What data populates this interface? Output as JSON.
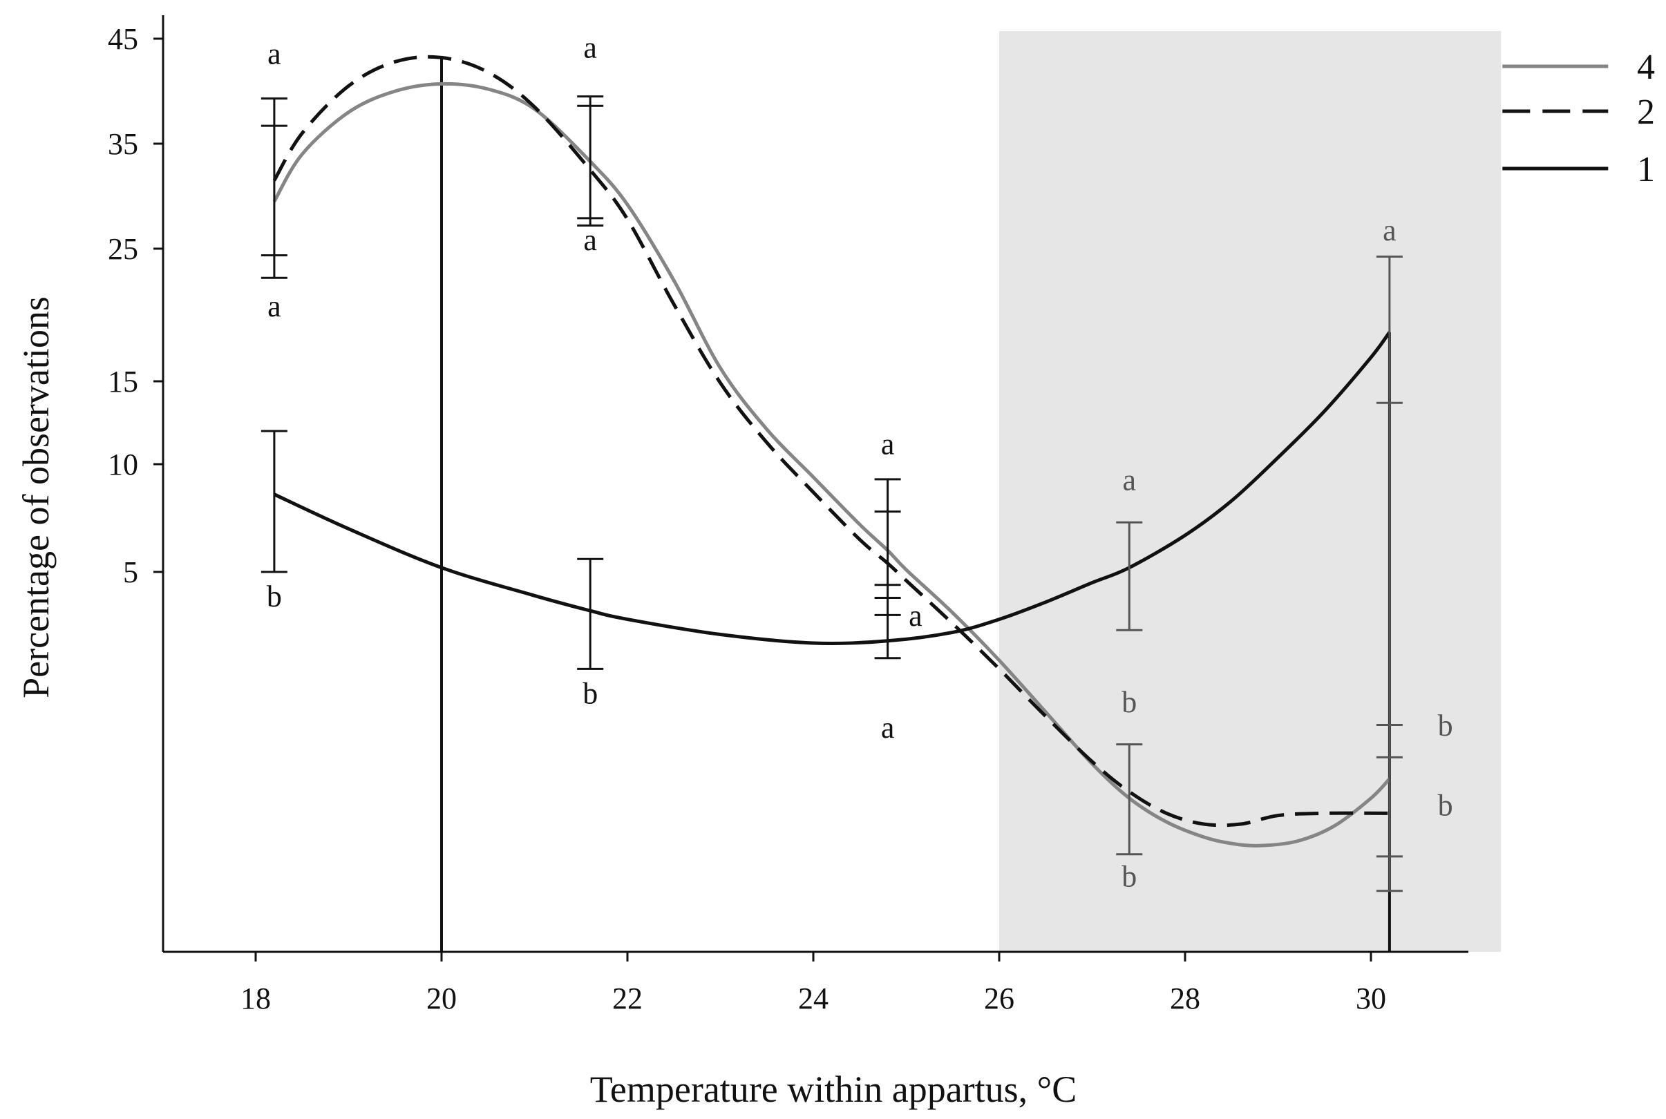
{
  "chart_data": {
    "type": "line",
    "title": "",
    "xlabel": "Temperature within appartus, °C",
    "ylabel": "Percentage of observations",
    "xlim": [
      17,
      31.4
    ],
    "x_ticks": [
      18,
      20,
      22,
      24,
      26,
      28,
      30
    ],
    "x_tick_labels": [
      "18",
      "20",
      "22",
      "24",
      "26",
      "28",
      "30"
    ],
    "y_ticks": [
      5,
      10,
      15,
      25,
      35,
      45
    ],
    "y_tick_labels": [
      "5",
      "10",
      "15",
      "25",
      "35",
      "45"
    ],
    "grid": false,
    "shaded_region": {
      "x_start": 26,
      "x_end": 31.4
    },
    "legend": {
      "placement": "top-right",
      "entries": [
        {
          "label": "4",
          "series": "4",
          "style": "solid",
          "color": "#858585"
        },
        {
          "label": "2",
          "series": "2",
          "style": "dashed",
          "color": "#111111"
        },
        {
          "label": "1",
          "series": "1",
          "style": "solid",
          "color": "#111111"
        }
      ]
    },
    "series": [
      {
        "name": "4",
        "style": "solid",
        "color": "#858585",
        "points": [
          {
            "x": 18.2,
            "y": 29.5
          },
          {
            "x": 18.5,
            "y": 34
          },
          {
            "x": 19,
            "y": 38
          },
          {
            "x": 19.5,
            "y": 40
          },
          {
            "x": 20,
            "y": 40.7
          },
          {
            "x": 20.5,
            "y": 40.2
          },
          {
            "x": 21,
            "y": 38.3
          },
          {
            "x": 21.6,
            "y": 33.3
          },
          {
            "x": 22,
            "y": 29.2
          },
          {
            "x": 22.5,
            "y": 22.6
          },
          {
            "x": 23,
            "y": 16
          },
          {
            "x": 23.5,
            "y": 12.1
          },
          {
            "x": 24,
            "y": 9.4
          },
          {
            "x": 24.5,
            "y": 7.2
          },
          {
            "x": 24.8,
            "y": 6
          },
          {
            "x": 25,
            "y": 5.1
          },
          {
            "x": 25.5,
            "y": 3.1
          },
          {
            "x": 26,
            "y": 0.9
          },
          {
            "x": 26.5,
            "y": -1.5
          },
          {
            "x": 27,
            "y": -3.9
          },
          {
            "x": 27.4,
            "y": -5.5
          },
          {
            "x": 27.8,
            "y": -6.6
          },
          {
            "x": 28.2,
            "y": -7.3
          },
          {
            "x": 28.5,
            "y": -7.6
          },
          {
            "x": 28.8,
            "y": -7.7
          },
          {
            "x": 29.2,
            "y": -7.5
          },
          {
            "x": 29.6,
            "y": -6.8
          },
          {
            "x": 30,
            "y": -5.5
          },
          {
            "x": 30.2,
            "y": -4.6
          }
        ]
      },
      {
        "name": "2",
        "style": "dashed",
        "color": "#111111",
        "points": [
          {
            "x": 18.2,
            "y": 31.5
          },
          {
            "x": 18.5,
            "y": 36
          },
          {
            "x": 19,
            "y": 40.5
          },
          {
            "x": 19.5,
            "y": 42.8
          },
          {
            "x": 20,
            "y": 43.2
          },
          {
            "x": 20.5,
            "y": 41.8
          },
          {
            "x": 21,
            "y": 38.5
          },
          {
            "x": 21.6,
            "y": 32.5
          },
          {
            "x": 22,
            "y": 27.8
          },
          {
            "x": 22.5,
            "y": 20.8
          },
          {
            "x": 23,
            "y": 14.9
          },
          {
            "x": 23.5,
            "y": 11.3
          },
          {
            "x": 24,
            "y": 8.7
          },
          {
            "x": 24.5,
            "y": 6.5
          },
          {
            "x": 24.8,
            "y": 5.4
          },
          {
            "x": 25,
            "y": 4.6
          },
          {
            "x": 25.5,
            "y": 2.6
          },
          {
            "x": 26,
            "y": 0.5
          },
          {
            "x": 26.5,
            "y": -1.7
          },
          {
            "x": 27,
            "y": -3.8
          },
          {
            "x": 27.4,
            "y": -5.2
          },
          {
            "x": 27.8,
            "y": -6.2
          },
          {
            "x": 28.2,
            "y": -6.7
          },
          {
            "x": 28.6,
            "y": -6.7
          },
          {
            "x": 29,
            "y": -6.3
          },
          {
            "x": 29.5,
            "y": -6.2
          },
          {
            "x": 30.2,
            "y": -6.2
          }
        ]
      },
      {
        "name": "1",
        "style": "solid",
        "color": "#111111",
        "points": [
          {
            "x": 18.2,
            "y": 8.6
          },
          {
            "x": 19,
            "y": 7
          },
          {
            "x": 20,
            "y": 5.2
          },
          {
            "x": 21,
            "y": 3.9
          },
          {
            "x": 21.6,
            "y": 3.2
          },
          {
            "x": 22,
            "y": 2.8
          },
          {
            "x": 23,
            "y": 2.1
          },
          {
            "x": 24,
            "y": 1.7
          },
          {
            "x": 24.8,
            "y": 1.8
          },
          {
            "x": 25.5,
            "y": 2.2
          },
          {
            "x": 26,
            "y": 2.8
          },
          {
            "x": 26.5,
            "y": 3.6
          },
          {
            "x": 27,
            "y": 4.5
          },
          {
            "x": 27.4,
            "y": 5.2
          },
          {
            "x": 28,
            "y": 6.7
          },
          {
            "x": 28.5,
            "y": 8.3
          },
          {
            "x": 29,
            "y": 10.4
          },
          {
            "x": 29.5,
            "y": 13.2
          },
          {
            "x": 30,
            "y": 16.8
          },
          {
            "x": 30.2,
            "y": 18.7
          }
        ]
      }
    ],
    "vertical_lines": [
      {
        "x": 20,
        "y_from": 43.2,
        "y_to": "axis",
        "color": "#111111"
      },
      {
        "x": 30.2,
        "y_from": 18.7,
        "y_to": "axis",
        "color": "#111111"
      }
    ],
    "error_bars": [
      {
        "x": 18.2,
        "low": 22.8,
        "high": 39.3,
        "color": "#111111",
        "caps": [
          22.8,
          24.5,
          36.7,
          39.3
        ]
      },
      {
        "x": 21.6,
        "low": 27.2,
        "high": 39.5,
        "color": "#111111",
        "caps": [
          27.2,
          27.9,
          38.6,
          39.5
        ]
      },
      {
        "x": 18.2,
        "low": 5,
        "high": 12,
        "color": "#111111",
        "caps": [
          5,
          12
        ]
      },
      {
        "x": 21.6,
        "low": 0.5,
        "high": 5.6,
        "color": "#111111",
        "caps": [
          0.5,
          5.6
        ]
      },
      {
        "x": 24.8,
        "low": 1,
        "high": 9.3,
        "color": "#111111",
        "caps": [
          1,
          3,
          3.8,
          4.4,
          7.8,
          9.3
        ]
      },
      {
        "x": 27.4,
        "low": 2.3,
        "high": 7.3,
        "color": "#555555",
        "caps": [
          2.3,
          7.3
        ]
      },
      {
        "x": 27.4,
        "low": -8.1,
        "high": -3,
        "color": "#555555",
        "caps": [
          -8.1,
          -3
        ]
      },
      {
        "x": 30.2,
        "low": -9.8,
        "high": 24.4,
        "color": "#555555",
        "caps": [
          -9.8,
          -8.2,
          -3.6,
          -2.1,
          13.7,
          24.4
        ]
      }
    ],
    "significance_labels": [
      {
        "text": "a",
        "x": 18.2,
        "y": 42.6,
        "color": "#111111"
      },
      {
        "text": "a",
        "x": 18.2,
        "y": 19.9,
        "color": "#111111"
      },
      {
        "text": "b",
        "x": 18.2,
        "y": 3.4,
        "color": "#111111"
      },
      {
        "text": "a",
        "x": 21.6,
        "y": 43.2,
        "color": "#111111"
      },
      {
        "text": "a",
        "x": 21.6,
        "y": 24.9,
        "color": "#111111"
      },
      {
        "text": "b",
        "x": 21.6,
        "y": -1.1,
        "color": "#111111"
      },
      {
        "text": "a",
        "x": 24.8,
        "y": 10.6,
        "color": "#111111"
      },
      {
        "text": "a",
        "x": 25.1,
        "y": 2.5,
        "color": "#111111"
      },
      {
        "text": "a",
        "x": 24.8,
        "y": -2.7,
        "color": "#111111"
      },
      {
        "text": "a",
        "x": 27.4,
        "y": 8.8,
        "color": "#555555"
      },
      {
        "text": "b",
        "x": 27.4,
        "y": -1.5,
        "color": "#555555"
      },
      {
        "text": "b",
        "x": 27.4,
        "y": -9.6,
        "color": "#555555"
      },
      {
        "text": "a",
        "x": 30.2,
        "y": 25.8,
        "color": "#555555"
      },
      {
        "text": "b",
        "x": 30.8,
        "y": -2.6,
        "color": "#555555"
      },
      {
        "text": "b",
        "x": 30.8,
        "y": -6.3,
        "color": "#555555"
      }
    ]
  }
}
